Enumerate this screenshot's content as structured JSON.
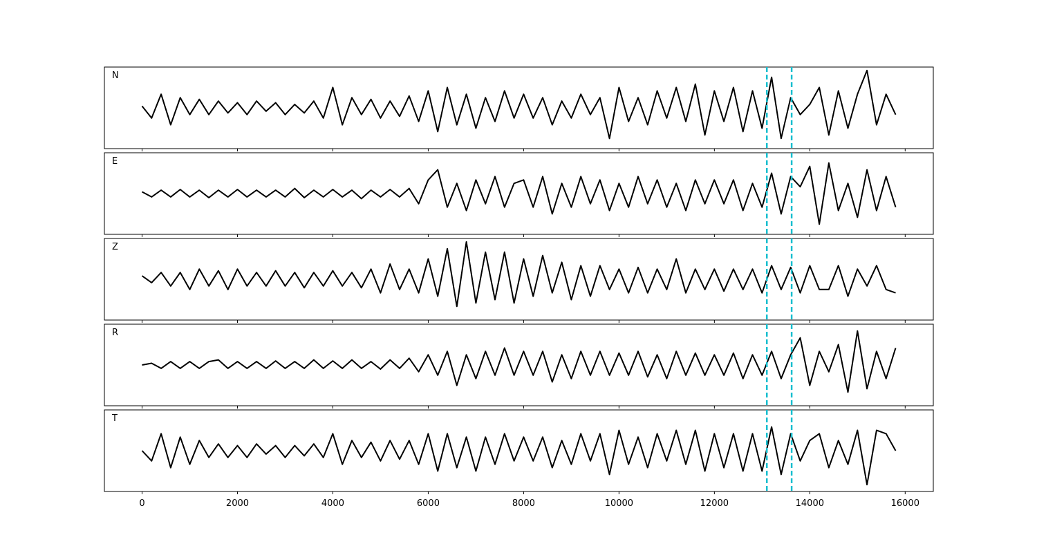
{
  "chart_data": {
    "type": "line",
    "layout": "stacked",
    "x": [
      0,
      200,
      400,
      600,
      800,
      1000,
      1200,
      1400,
      1600,
      1800,
      2000,
      2200,
      2400,
      2600,
      2800,
      3000,
      3200,
      3400,
      3600,
      3800,
      4000,
      4200,
      4400,
      4600,
      4800,
      5000,
      5200,
      5400,
      5600,
      5800,
      6000,
      6200,
      6400,
      6600,
      6800,
      7000,
      7200,
      7400,
      7600,
      7800,
      8000,
      8200,
      8400,
      8600,
      8800,
      9000,
      9200,
      9400,
      9600,
      9800,
      10000,
      10200,
      10400,
      10600,
      10800,
      11000,
      11200,
      11400,
      11600,
      11800,
      12000,
      12200,
      12400,
      12600,
      12800,
      13000,
      13200,
      13400,
      13600,
      13800,
      14000,
      14200,
      14400,
      14600,
      14800,
      15000,
      15200,
      15400,
      15600,
      15800
    ],
    "series": [
      {
        "name": "N",
        "color": "#000000",
        "values": [
          0.05,
          -0.3,
          0.4,
          -0.5,
          0.3,
          -0.2,
          0.25,
          -0.2,
          0.2,
          -0.15,
          0.15,
          -0.2,
          0.2,
          -0.1,
          0.15,
          -0.2,
          0.1,
          -0.15,
          0.2,
          -0.3,
          0.6,
          -0.5,
          0.3,
          -0.2,
          0.25,
          -0.3,
          0.2,
          -0.25,
          0.35,
          -0.4,
          0.5,
          -0.7,
          0.6,
          -0.5,
          0.4,
          -0.6,
          0.3,
          -0.4,
          0.5,
          -0.3,
          0.4,
          -0.3,
          0.3,
          -0.5,
          0.2,
          -0.3,
          0.4,
          -0.2,
          0.3,
          -0.9,
          0.6,
          -0.4,
          0.3,
          -0.5,
          0.5,
          -0.3,
          0.6,
          -0.4,
          0.7,
          -0.8,
          0.5,
          -0.4,
          0.6,
          -0.7,
          0.5,
          -0.6,
          0.9,
          -0.9,
          0.3,
          -0.2,
          0.1,
          0.6,
          -0.8,
          0.5,
          -0.6,
          0.4,
          1.1,
          -0.5,
          0.4,
          -0.2
        ]
      },
      {
        "name": "E",
        "color": "#000000",
        "values": [
          0.05,
          -0.1,
          0.1,
          -0.1,
          0.12,
          -0.1,
          0.1,
          -0.12,
          0.1,
          -0.1,
          0.12,
          -0.1,
          0.1,
          -0.1,
          0.1,
          -0.1,
          0.15,
          -0.12,
          0.1,
          -0.1,
          0.12,
          -0.1,
          0.1,
          -0.15,
          0.1,
          -0.1,
          0.12,
          -0.1,
          0.15,
          -0.3,
          0.4,
          0.7,
          -0.4,
          0.3,
          -0.5,
          0.4,
          -0.3,
          0.5,
          -0.4,
          0.3,
          0.4,
          -0.4,
          0.5,
          -0.6,
          0.3,
          -0.4,
          0.5,
          -0.3,
          0.4,
          -0.5,
          0.3,
          -0.4,
          0.5,
          -0.3,
          0.4,
          -0.4,
          0.3,
          -0.5,
          0.4,
          -0.3,
          0.4,
          -0.3,
          0.4,
          -0.5,
          0.3,
          -0.4,
          0.6,
          -0.6,
          0.5,
          0.2,
          0.8,
          -0.9,
          0.9,
          -0.5,
          0.3,
          -0.7,
          0.7,
          -0.5,
          0.5,
          -0.4
        ]
      },
      {
        "name": "Z",
        "color": "#000000",
        "values": [
          0.1,
          -0.1,
          0.2,
          -0.2,
          0.2,
          -0.3,
          0.3,
          -0.2,
          0.25,
          -0.3,
          0.3,
          -0.2,
          0.2,
          -0.2,
          0.25,
          -0.2,
          0.2,
          -0.25,
          0.2,
          -0.2,
          0.25,
          -0.2,
          0.2,
          -0.25,
          0.3,
          -0.4,
          0.45,
          -0.3,
          0.3,
          -0.4,
          0.6,
          -0.5,
          0.9,
          -0.8,
          1.1,
          -0.7,
          0.8,
          -0.6,
          0.8,
          -0.7,
          0.6,
          -0.5,
          0.7,
          -0.4,
          0.5,
          -0.6,
          0.4,
          -0.5,
          0.4,
          -0.3,
          0.3,
          -0.4,
          0.35,
          -0.4,
          0.3,
          -0.3,
          0.6,
          -0.4,
          0.3,
          -0.3,
          0.3,
          -0.35,
          0.3,
          -0.3,
          0.3,
          -0.4,
          0.4,
          -0.3,
          0.35,
          -0.4,
          0.4,
          -0.3,
          -0.3,
          0.4,
          -0.5,
          0.3,
          -0.2,
          0.4,
          -0.3,
          -0.4
        ]
      },
      {
        "name": "R",
        "color": "#000000",
        "values": [
          0.0,
          0.05,
          -0.1,
          0.1,
          -0.1,
          0.1,
          -0.1,
          0.1,
          0.15,
          -0.1,
          0.1,
          -0.1,
          0.1,
          -0.1,
          0.12,
          -0.1,
          0.1,
          -0.1,
          0.15,
          -0.1,
          0.12,
          -0.1,
          0.15,
          -0.1,
          0.1,
          -0.12,
          0.15,
          -0.1,
          0.2,
          -0.2,
          0.3,
          -0.3,
          0.4,
          -0.6,
          0.3,
          -0.4,
          0.4,
          -0.3,
          0.5,
          -0.3,
          0.4,
          -0.3,
          0.4,
          -0.5,
          0.3,
          -0.4,
          0.4,
          -0.3,
          0.4,
          -0.3,
          0.35,
          -0.3,
          0.4,
          -0.35,
          0.3,
          -0.4,
          0.4,
          -0.3,
          0.35,
          -0.3,
          0.3,
          -0.3,
          0.35,
          -0.4,
          0.3,
          -0.3,
          0.4,
          -0.4,
          0.3,
          0.8,
          -0.6,
          0.4,
          -0.2,
          0.6,
          -0.8,
          1.0,
          -0.7,
          0.4,
          -0.4,
          0.5
        ]
      },
      {
        "name": "T",
        "color": "#000000",
        "values": [
          0.0,
          -0.3,
          0.5,
          -0.5,
          0.4,
          -0.4,
          0.3,
          -0.2,
          0.2,
          -0.2,
          0.15,
          -0.2,
          0.2,
          -0.1,
          0.15,
          -0.2,
          0.15,
          -0.15,
          0.2,
          -0.2,
          0.5,
          -0.4,
          0.3,
          -0.2,
          0.25,
          -0.3,
          0.3,
          -0.25,
          0.3,
          -0.4,
          0.5,
          -0.6,
          0.5,
          -0.5,
          0.4,
          -0.6,
          0.4,
          -0.4,
          0.5,
          -0.3,
          0.4,
          -0.3,
          0.4,
          -0.5,
          0.3,
          -0.4,
          0.5,
          -0.3,
          0.5,
          -0.7,
          0.6,
          -0.4,
          0.4,
          -0.5,
          0.5,
          -0.3,
          0.6,
          -0.4,
          0.6,
          -0.6,
          0.5,
          -0.5,
          0.5,
          -0.6,
          0.5,
          -0.6,
          0.7,
          -0.7,
          0.5,
          -0.3,
          0.3,
          0.5,
          -0.5,
          0.3,
          -0.4,
          0.6,
          -1.0,
          0.6,
          0.5,
          0.0
        ]
      }
    ],
    "xlim": [
      -790,
      16590
    ],
    "xticks": [
      0,
      2000,
      4000,
      6000,
      8000,
      10000,
      12000,
      14000,
      16000
    ],
    "ylim": [
      -1.2,
      1.2
    ],
    "vlines": {
      "values": [
        13100,
        13620
      ],
      "color": "#17becf",
      "style": "dashed"
    }
  }
}
